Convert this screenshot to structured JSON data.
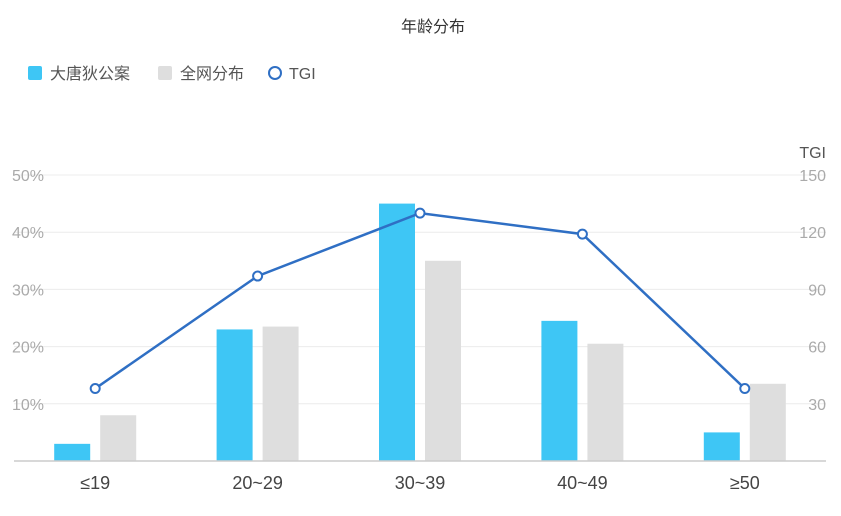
{
  "chart_data": {
    "type": "bar",
    "title": "年龄分布",
    "categories": [
      "≤19",
      "20~29",
      "30~39",
      "40~49",
      "≥50"
    ],
    "series": [
      {
        "name": "大唐狄公案",
        "kind": "bar",
        "axis": "left",
        "color": "#3EC6F5",
        "values": [
          3,
          23,
          45,
          24.5,
          5
        ]
      },
      {
        "name": "全网分布",
        "kind": "bar",
        "axis": "left",
        "color": "#DEDEDE",
        "values": [
          8,
          23.5,
          35,
          20.5,
          13.5
        ]
      },
      {
        "name": "TGI",
        "kind": "line",
        "axis": "right",
        "color": "#2F6FC4",
        "values": [
          38,
          97,
          130,
          119,
          38
        ]
      }
    ],
    "y_left": {
      "min": 0,
      "max": 50,
      "ticks": [
        10,
        20,
        30,
        40,
        50
      ],
      "format": "{v}%"
    },
    "y_right": {
      "label": "TGI",
      "min": 0,
      "max": 150,
      "ticks": [
        30,
        60,
        90,
        120,
        150
      ]
    },
    "grid": true,
    "legend_position": "top-left"
  }
}
